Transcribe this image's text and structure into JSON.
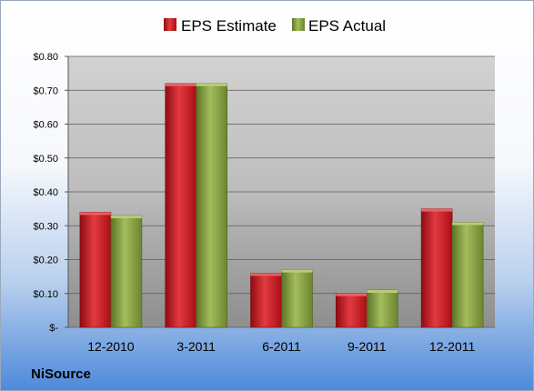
{
  "company": "NiSource",
  "chart_data": {
    "type": "bar",
    "categories": [
      "12-2010",
      "3-2011",
      "6-2011",
      "9-2011",
      "12-2011"
    ],
    "series": [
      {
        "name": "EPS Estimate",
        "values": [
          0.34,
          0.72,
          0.16,
          0.1,
          0.35
        ],
        "color": "#c0141c"
      },
      {
        "name": "EPS Actual",
        "values": [
          0.33,
          0.72,
          0.17,
          0.11,
          0.31
        ],
        "color": "#7f9a3a"
      }
    ],
    "ylim": [
      0,
      0.8
    ],
    "yticks": [
      {
        "value": 0,
        "label": "$-"
      },
      {
        "value": 0.1,
        "label": "$0.10"
      },
      {
        "value": 0.2,
        "label": "$0.20"
      },
      {
        "value": 0.3,
        "label": "$0.30"
      },
      {
        "value": 0.4,
        "label": "$0.40"
      },
      {
        "value": 0.5,
        "label": "$0.50"
      },
      {
        "value": 0.6,
        "label": "$0.60"
      },
      {
        "value": 0.7,
        "label": "$0.70"
      },
      {
        "value": 0.8,
        "label": "$0.80"
      }
    ],
    "legend_position": "top",
    "grid": true
  }
}
